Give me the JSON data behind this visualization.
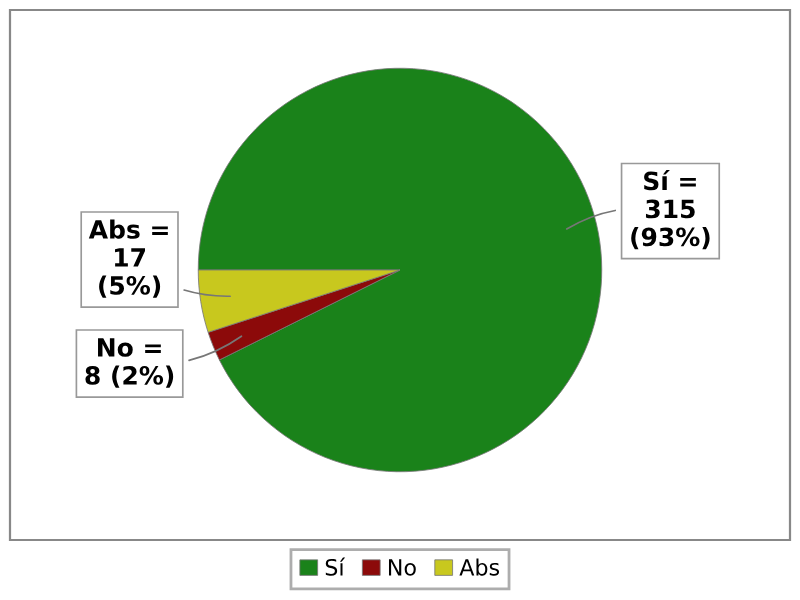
{
  "chart_data": {
    "type": "pie",
    "categories": [
      "Sí",
      "No",
      "Abs"
    ],
    "values": [
      315,
      8,
      17
    ],
    "colors": [
      "#1a821a",
      "#8c0a0a",
      "#c8c81e"
    ],
    "value_labels": [
      "Sí =\n315\n(93%)",
      "No =\n8 (2%)",
      "Abs =\n17\n(5%)"
    ],
    "legend": "bottom"
  }
}
